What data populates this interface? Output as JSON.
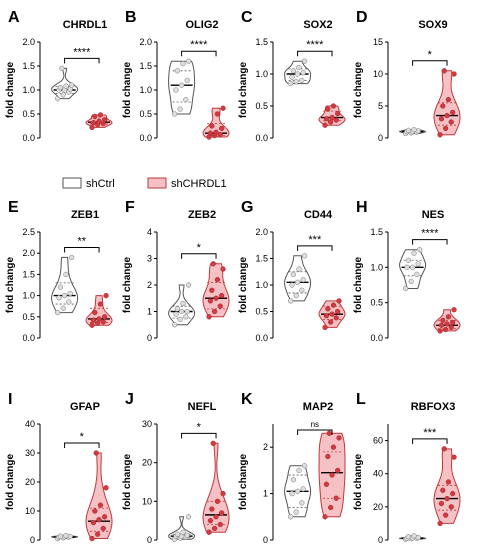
{
  "colors": {
    "ctrl_fill": "#ffffff",
    "ctrl_stroke": "#555555",
    "ctrl_point": "#dddddd",
    "kd_fill": "#f6c1c4",
    "kd_stroke": "#c0393b",
    "kd_point": "#d13a40"
  },
  "axis_title": "fold change",
  "legend": [
    "shCtrl",
    "shCHRDL1"
  ],
  "chart_data": [
    {
      "type": "violin",
      "panel": "A",
      "title": "CHRDL1",
      "ylabel": "fold change",
      "ylim": [
        0,
        2.0
      ],
      "yticks": [
        0,
        0.5,
        1.0,
        1.5,
        2.0
      ],
      "yticklabels": [
        "0.0",
        "0.5",
        "1.0",
        "1.5",
        "2.0"
      ],
      "sig": "****",
      "series": [
        {
          "name": "shCtrl",
          "values": [
            0.82,
            0.9,
            0.96,
            1.0,
            1.0,
            1.02,
            1.05,
            1.08,
            1.1,
            1.45
          ],
          "median": 1.0,
          "q1": 0.93,
          "q3": 1.07,
          "min": 0.82,
          "max": 1.45
        },
        {
          "name": "shCHRDL1",
          "values": [
            0.22,
            0.28,
            0.3,
            0.32,
            0.35,
            0.38,
            0.45,
            0.48
          ],
          "median": 0.33,
          "q1": 0.29,
          "q3": 0.4,
          "min": 0.22,
          "max": 0.48
        }
      ]
    },
    {
      "type": "violin",
      "panel": "B",
      "title": "OLIG2",
      "ylabel": "fold change",
      "ylim": [
        0,
        2.0
      ],
      "yticks": [
        0,
        0.5,
        1.0,
        1.5,
        2.0
      ],
      "yticklabels": [
        "0.0",
        "0.5",
        "1.0",
        "1.5",
        "2.0"
      ],
      "sig": "****",
      "series": [
        {
          "name": "shCtrl",
          "values": [
            0.5,
            0.6,
            0.8,
            1.0,
            1.1,
            1.2,
            1.4,
            1.55,
            1.6
          ],
          "median": 1.1,
          "q1": 0.75,
          "q3": 1.4,
          "min": 0.5,
          "max": 1.6
        },
        {
          "name": "shCHRDL1",
          "values": [
            0.02,
            0.05,
            0.07,
            0.1,
            0.12,
            0.2,
            0.25,
            0.5,
            0.62
          ],
          "median": 0.1,
          "q1": 0.05,
          "q3": 0.3,
          "min": 0.02,
          "max": 0.62
        }
      ]
    },
    {
      "type": "violin",
      "panel": "C",
      "title": "SOX2",
      "ylabel": "fold change",
      "ylim": [
        0,
        1.5
      ],
      "yticks": [
        0,
        0.5,
        1.0,
        1.5
      ],
      "yticklabels": [
        "0.0",
        "0.5",
        "1.0",
        "1.5"
      ],
      "sig": "****",
      "series": [
        {
          "name": "shCtrl",
          "values": [
            0.85,
            0.88,
            0.9,
            0.95,
            1.0,
            1.02,
            1.05,
            1.1,
            1.2
          ],
          "median": 1.0,
          "q1": 0.9,
          "q3": 1.08,
          "min": 0.85,
          "max": 1.2
        },
        {
          "name": "shCHRDL1",
          "values": [
            0.2,
            0.25,
            0.28,
            0.3,
            0.32,
            0.38,
            0.45,
            0.5
          ],
          "median": 0.32,
          "q1": 0.27,
          "q3": 0.42,
          "min": 0.2,
          "max": 0.5
        }
      ]
    },
    {
      "type": "violin",
      "panel": "D",
      "title": "SOX9",
      "ylabel": "fold change",
      "ylim": [
        0,
        15
      ],
      "yticks": [
        0,
        5,
        10,
        15
      ],
      "yticklabels": [
        "0",
        "5",
        "10",
        "15"
      ],
      "sig": "*",
      "series": [
        {
          "name": "shCtrl",
          "values": [
            0.7,
            0.8,
            0.9,
            1.0,
            1.0,
            1.1,
            1.2,
            1.3
          ],
          "median": 1.0,
          "q1": 0.85,
          "q3": 1.15,
          "min": 0.7,
          "max": 1.3
        },
        {
          "name": "shCHRDL1",
          "values": [
            0.5,
            1.5,
            2.5,
            3.0,
            3.5,
            4.0,
            5.0,
            6.0,
            10.0,
            10.5
          ],
          "median": 3.5,
          "q1": 2.0,
          "q3": 5.5,
          "min": 0.5,
          "max": 10.5
        }
      ]
    },
    {
      "type": "violin",
      "panel": "E",
      "title": "ZEB1",
      "ylabel": "fold change",
      "ylim": [
        0,
        2.5
      ],
      "yticks": [
        0,
        0.5,
        1.0,
        1.5,
        2.0,
        2.5
      ],
      "yticklabels": [
        "0.0",
        "0.5",
        "1.0",
        "1.5",
        "2.0",
        "2.5"
      ],
      "sig": "**",
      "series": [
        {
          "name": "shCtrl",
          "values": [
            0.6,
            0.7,
            0.85,
            0.95,
            1.0,
            1.05,
            1.2,
            1.5,
            1.9
          ],
          "median": 1.0,
          "q1": 0.8,
          "q3": 1.3,
          "min": 0.6,
          "max": 1.9
        },
        {
          "name": "shCHRDL1",
          "values": [
            0.3,
            0.35,
            0.38,
            0.42,
            0.45,
            0.5,
            0.6,
            0.8,
            1.0
          ],
          "median": 0.45,
          "q1": 0.37,
          "q3": 0.7,
          "min": 0.3,
          "max": 1.0
        }
      ]
    },
    {
      "type": "violin",
      "panel": "F",
      "title": "ZEB2",
      "ylabel": "fold change",
      "ylim": [
        0,
        4
      ],
      "yticks": [
        0,
        1,
        2,
        3,
        4
      ],
      "yticklabels": [
        "0",
        "1",
        "2",
        "3",
        "4"
      ],
      "sig": "*",
      "series": [
        {
          "name": "shCtrl",
          "values": [
            0.5,
            0.7,
            0.8,
            0.9,
            1.0,
            1.0,
            1.1,
            1.3,
            2.0
          ],
          "median": 1.0,
          "q1": 0.75,
          "q3": 1.2,
          "min": 0.5,
          "max": 2.0
        },
        {
          "name": "shCHRDL1",
          "values": [
            0.8,
            1.0,
            1.2,
            1.4,
            1.5,
            1.6,
            1.8,
            2.2,
            2.6,
            2.8
          ],
          "median": 1.5,
          "q1": 1.1,
          "q3": 2.1,
          "min": 0.8,
          "max": 2.8
        }
      ]
    },
    {
      "type": "violin",
      "panel": "G",
      "title": "CD44",
      "ylabel": "fold change",
      "ylim": [
        0,
        2.0
      ],
      "yticks": [
        0,
        0.5,
        1.0,
        1.5,
        2.0
      ],
      "yticklabels": [
        "0.0",
        "0.5",
        "1.0",
        "1.5",
        "2.0"
      ],
      "sig": "***",
      "series": [
        {
          "name": "shCtrl",
          "values": [
            0.7,
            0.8,
            0.9,
            1.0,
            1.05,
            1.1,
            1.2,
            1.3,
            1.55
          ],
          "median": 1.05,
          "q1": 0.85,
          "q3": 1.25,
          "min": 0.7,
          "max": 1.55
        },
        {
          "name": "shCHRDL1",
          "values": [
            0.2,
            0.3,
            0.38,
            0.42,
            0.45,
            0.5,
            0.55,
            0.62,
            0.7
          ],
          "median": 0.45,
          "q1": 0.35,
          "q3": 0.6,
          "min": 0.2,
          "max": 0.7
        }
      ]
    },
    {
      "type": "violin",
      "panel": "H",
      "title": "NES",
      "ylabel": "fold change",
      "ylim": [
        0,
        1.5
      ],
      "yticks": [
        0,
        0.5,
        1.0,
        1.5
      ],
      "yticklabels": [
        "0.0",
        "0.5",
        "1.0",
        "1.5"
      ],
      "sig": "****",
      "series": [
        {
          "name": "shCtrl",
          "values": [
            0.7,
            0.8,
            0.9,
            1.0,
            1.0,
            1.05,
            1.1,
            1.2,
            1.25
          ],
          "median": 1.0,
          "q1": 0.88,
          "q3": 1.1,
          "min": 0.7,
          "max": 1.25
        },
        {
          "name": "shCHRDL1",
          "values": [
            0.1,
            0.12,
            0.15,
            0.18,
            0.2,
            0.22,
            0.25,
            0.3,
            0.4
          ],
          "median": 0.18,
          "q1": 0.13,
          "q3": 0.25,
          "min": 0.1,
          "max": 0.4
        }
      ]
    },
    {
      "type": "violin",
      "panel": "I",
      "title": "GFAP",
      "ylabel": "fold change",
      "ylim": [
        0,
        40
      ],
      "yticks": [
        0,
        10,
        20,
        30,
        40
      ],
      "yticklabels": [
        "0",
        "10",
        "20",
        "30",
        "40"
      ],
      "sig": "*",
      "series": [
        {
          "name": "shCtrl",
          "values": [
            0.5,
            0.8,
            1.0,
            1.0,
            1.1,
            1.2,
            1.3,
            1.5
          ],
          "median": 1.0,
          "q1": 0.8,
          "q3": 1.3,
          "min": 0.5,
          "max": 1.5
        },
        {
          "name": "shCHRDL1",
          "values": [
            0.5,
            2.0,
            4.0,
            6.0,
            7.0,
            8.0,
            10.0,
            12.0,
            18.0,
            30.0
          ],
          "median": 6.5,
          "q1": 3.0,
          "q3": 11.0,
          "min": 0.5,
          "max": 30.0
        }
      ]
    },
    {
      "type": "violin",
      "panel": "J",
      "title": "NEFL",
      "ylabel": "fold change",
      "ylim": [
        0,
        30
      ],
      "yticks": [
        0,
        10,
        20,
        30
      ],
      "yticklabels": [
        "0",
        "10",
        "20",
        "30"
      ],
      "sig": "*",
      "series": [
        {
          "name": "shCtrl",
          "values": [
            0.2,
            0.5,
            0.8,
            1.0,
            1.0,
            1.2,
            1.5,
            2.0,
            6.0
          ],
          "median": 1.0,
          "q1": 0.6,
          "q3": 1.5,
          "min": 0.2,
          "max": 6.0
        },
        {
          "name": "shCHRDL1",
          "values": [
            2.0,
            3.0,
            4.0,
            5.0,
            6.0,
            7.0,
            8.0,
            10.0,
            12.0,
            25.0
          ],
          "median": 6.5,
          "q1": 4.0,
          "q3": 10.0,
          "min": 2.0,
          "max": 25.0
        }
      ]
    },
    {
      "type": "violin",
      "panel": "K",
      "title": "MAP2",
      "ylabel": "fold change",
      "ylim": [
        0,
        2.5
      ],
      "yticks": [
        0,
        1,
        2
      ],
      "yticklabels": [
        "0",
        "1",
        "2"
      ],
      "sig": "ns",
      "series": [
        {
          "name": "shCtrl",
          "values": [
            0.5,
            0.6,
            0.8,
            1.0,
            1.05,
            1.1,
            1.3,
            1.5,
            1.6
          ],
          "median": 1.05,
          "q1": 0.7,
          "q3": 1.4,
          "min": 0.5,
          "max": 1.6
        },
        {
          "name": "shCHRDL1",
          "values": [
            0.5,
            0.7,
            0.9,
            1.2,
            1.4,
            1.5,
            1.8,
            2.0,
            2.2,
            2.3
          ],
          "median": 1.45,
          "q1": 0.9,
          "q3": 1.9,
          "min": 0.5,
          "max": 2.3
        }
      ]
    },
    {
      "type": "violin",
      "panel": "L",
      "title": "RBFOX3",
      "ylabel": "fold change",
      "ylim": [
        0,
        70
      ],
      "yticks": [
        0,
        20,
        40,
        60
      ],
      "yticklabels": [
        "0",
        "20",
        "40",
        "60"
      ],
      "sig": "***",
      "series": [
        {
          "name": "shCtrl",
          "values": [
            0.5,
            0.8,
            1.0,
            1.0,
            1.2,
            1.5,
            2.0,
            2.5
          ],
          "median": 1.0,
          "q1": 0.8,
          "q3": 1.6,
          "min": 0.5,
          "max": 2.5
        },
        {
          "name": "shCHRDL1",
          "values": [
            10.0,
            15.0,
            20.0,
            22.0,
            25.0,
            28.0,
            30.0,
            35.0,
            50.0,
            55.0
          ],
          "median": 25.0,
          "q1": 18.0,
          "q3": 33.0,
          "min": 10.0,
          "max": 55.0
        }
      ]
    }
  ]
}
